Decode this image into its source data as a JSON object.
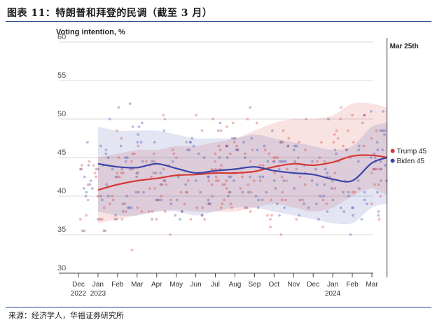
{
  "figure": {
    "title": "图表 11：特朗普和拜登的民调（截至 3 月）",
    "source": "来源：经济学人，华福证券研究所"
  },
  "chart_data": {
    "type": "line",
    "title": "",
    "ylabel": "Voting intention, %",
    "xlabel": "",
    "ylim": [
      30,
      60
    ],
    "yticks": [
      30,
      35,
      40,
      45,
      50,
      55,
      60
    ],
    "grid": true,
    "x_start": "2022-12",
    "x_end": "2024-03",
    "xtick_labels": [
      {
        "month": "Dec",
        "year": "2022"
      },
      {
        "month": "Jan",
        "year": "2023"
      },
      {
        "month": "Feb",
        "year": ""
      },
      {
        "month": "Mar",
        "year": ""
      },
      {
        "month": "Apr",
        "year": ""
      },
      {
        "month": "May",
        "year": ""
      },
      {
        "month": "Jun",
        "year": ""
      },
      {
        "month": "Jul",
        "year": ""
      },
      {
        "month": "Aug",
        "year": ""
      },
      {
        "month": "Sep",
        "year": ""
      },
      {
        "month": "Oct",
        "year": ""
      },
      {
        "month": "Nov",
        "year": ""
      },
      {
        "month": "Dec",
        "year": ""
      },
      {
        "month": "Jan",
        "year": "2024"
      },
      {
        "month": "Feb",
        "year": ""
      },
      {
        "month": "Mar",
        "year": ""
      }
    ],
    "annotation": {
      "label": "Mar 25th",
      "x": "2024-03-25"
    },
    "series": [
      {
        "name": "Trump",
        "end_label": "Trump 45",
        "color": "#d63a35",
        "x": [
          "2023-01-01",
          "2023-02-01",
          "2023-03-01",
          "2023-04-01",
          "2023-05-01",
          "2023-06-01",
          "2023-07-01",
          "2023-08-01",
          "2023-09-01",
          "2023-10-01",
          "2023-11-01",
          "2023-12-01",
          "2024-01-01",
          "2024-02-01",
          "2024-03-01",
          "2024-03-25"
        ],
        "values": [
          40.8,
          41.5,
          42.0,
          42.3,
          42.7,
          42.8,
          43.0,
          43.0,
          43.2,
          43.8,
          44.2,
          44.0,
          44.4,
          45.2,
          45.3,
          45.0
        ],
        "band_lower": [
          36.5,
          37.0,
          37.5,
          38.0,
          38.2,
          38.0,
          38.0,
          38.0,
          38.5,
          39.0,
          38.5,
          38.0,
          38.5,
          40.0,
          41.0,
          40.0
        ],
        "band_upper": [
          45.0,
          45.5,
          46.0,
          46.0,
          46.5,
          46.5,
          47.0,
          47.5,
          48.5,
          49.5,
          50.0,
          50.0,
          50.5,
          52.0,
          52.0,
          51.5
        ]
      },
      {
        "name": "Biden",
        "end_label": "Biden 45",
        "color": "#3b45a8",
        "x": [
          "2023-01-01",
          "2023-02-01",
          "2023-03-01",
          "2023-04-01",
          "2023-05-01",
          "2023-06-01",
          "2023-07-01",
          "2023-08-01",
          "2023-09-01",
          "2023-10-01",
          "2023-11-01",
          "2023-12-01",
          "2024-01-01",
          "2024-02-01",
          "2024-03-01",
          "2024-03-25"
        ],
        "values": [
          44.2,
          43.8,
          43.7,
          44.2,
          43.6,
          43.0,
          43.3,
          43.5,
          43.8,
          43.3,
          43.0,
          42.8,
          42.2,
          42.0,
          44.3,
          45.0
        ],
        "band_lower": [
          38.0,
          37.5,
          37.5,
          38.0,
          38.0,
          37.5,
          38.0,
          38.5,
          38.5,
          38.0,
          37.5,
          37.0,
          36.5,
          36.5,
          38.5,
          39.0
        ],
        "band_upper": [
          49.0,
          48.5,
          48.5,
          48.5,
          48.0,
          47.5,
          47.5,
          47.5,
          48.0,
          47.5,
          47.0,
          46.5,
          46.0,
          46.5,
          49.0,
          49.5
        ]
      }
    ]
  }
}
